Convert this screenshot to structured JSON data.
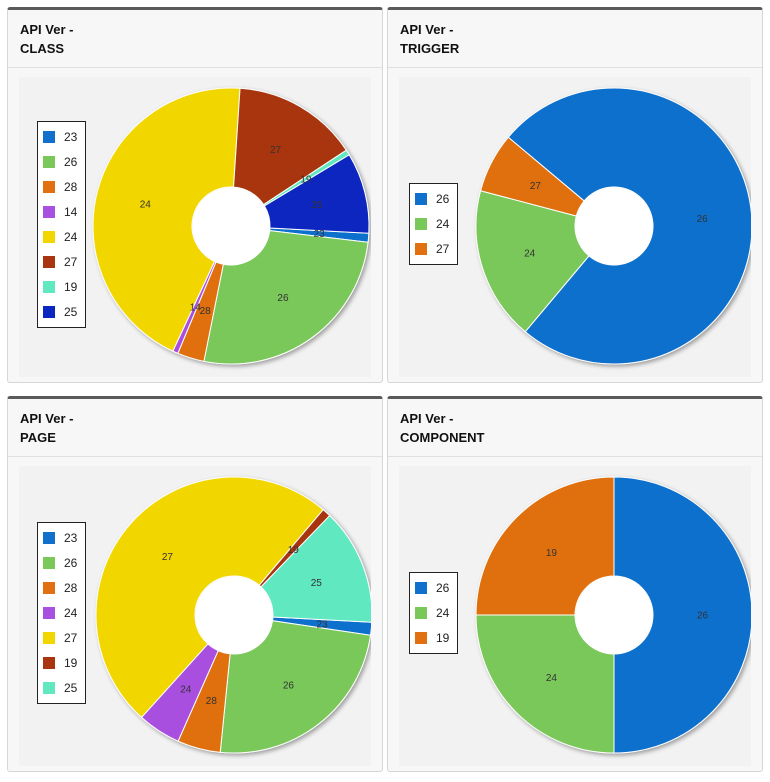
{
  "chart_data": [
    {
      "type": "pie",
      "title": "API Ver -\nCLASS",
      "labels": [
        "23",
        "26",
        "28",
        "14",
        "24",
        "27",
        "19",
        "25"
      ],
      "values": [
        1,
        25,
        3,
        0.6,
        42,
        14,
        0.6,
        9
      ],
      "colors": [
        "#1070cc",
        "#7ac75a",
        "#e07010",
        "#a850e0",
        "#f2d600",
        "#a83510",
        "#60e8c0",
        "#0a28c0"
      ],
      "start_angle_deg": 93,
      "legend_position": "left",
      "donut": true
    },
    {
      "type": "pie",
      "title": "API Ver -\nTRIGGER",
      "labels": [
        "26",
        "24",
        "27"
      ],
      "values": [
        75,
        18,
        7
      ],
      "colors": [
        "#1070cc",
        "#7ac75a",
        "#e07010"
      ],
      "start_angle_deg": 310,
      "legend_position": "left",
      "donut": true
    },
    {
      "type": "pie",
      "title": "API Ver -\nPAGE",
      "labels": [
        "23",
        "26",
        "28",
        "24",
        "27",
        "19",
        "25"
      ],
      "values": [
        1.5,
        24,
        5,
        5,
        49,
        1,
        13.5
      ],
      "colors": [
        "#1070cc",
        "#7ac75a",
        "#e07010",
        "#a850e0",
        "#f2d600",
        "#a83510",
        "#60e8c0"
      ],
      "start_angle_deg": 93,
      "legend_position": "left",
      "donut": true
    },
    {
      "type": "pie",
      "title": "API Ver -\nCOMPONENT",
      "labels": [
        "26",
        "24",
        "19"
      ],
      "values": [
        50,
        25,
        25
      ],
      "colors": [
        "#1070cc",
        "#7ac75a",
        "#e07010"
      ],
      "start_angle_deg": 0,
      "legend_position": "left",
      "donut": true
    }
  ]
}
